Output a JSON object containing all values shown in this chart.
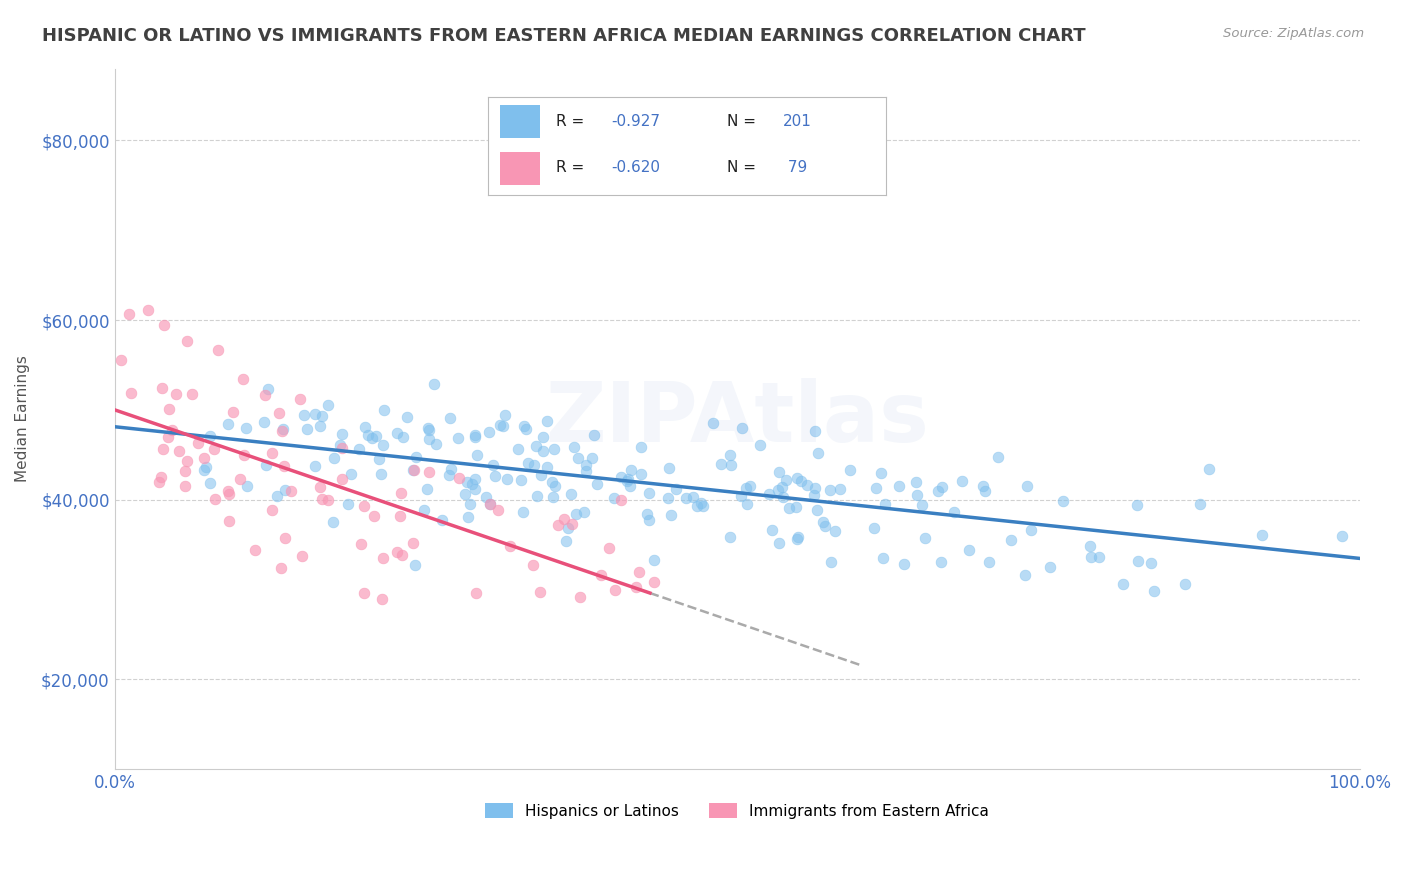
{
  "title": "HISPANIC OR LATINO VS IMMIGRANTS FROM EASTERN AFRICA MEDIAN EARNINGS CORRELATION CHART",
  "source_text": "Source: ZipAtlas.com",
  "ylabel": "Median Earnings",
  "xlim": [
    0.0,
    1.0
  ],
  "ylim": [
    10000,
    88000
  ],
  "yticks": [
    20000,
    40000,
    60000,
    80000
  ],
  "ytick_labels": [
    "$20,000",
    "$40,000",
    "$60,000",
    "$80,000"
  ],
  "xticks": [
    0.0,
    0.1,
    0.2,
    0.3,
    0.4,
    0.5,
    0.6,
    0.7,
    0.8,
    0.9,
    1.0
  ],
  "xtick_labels": [
    "0.0%",
    "",
    "",
    "",
    "",
    "",
    "",
    "",
    "",
    "",
    "100.0%"
  ],
  "legend_blue_label": "Hispanics or Latinos",
  "legend_pink_label": "Immigrants from Eastern Africa",
  "R_blue": -0.927,
  "N_blue": 201,
  "R_pink": -0.62,
  "N_pink": 79,
  "blue_color": "#7fbfed",
  "pink_color": "#f896b4",
  "blue_line_color": "#3a7fc1",
  "pink_line_color": "#e8507a",
  "watermark_text": "ZIPAtlas",
  "background_color": "#ffffff",
  "grid_color": "#cccccc",
  "axis_label_color": "#4472c4",
  "title_color": "#404040",
  "source_color": "#999999",
  "blue_scatter_seed": 42,
  "pink_scatter_seed": 123,
  "legend_text_color": "#4472c4",
  "legend_label_color": "#222222"
}
